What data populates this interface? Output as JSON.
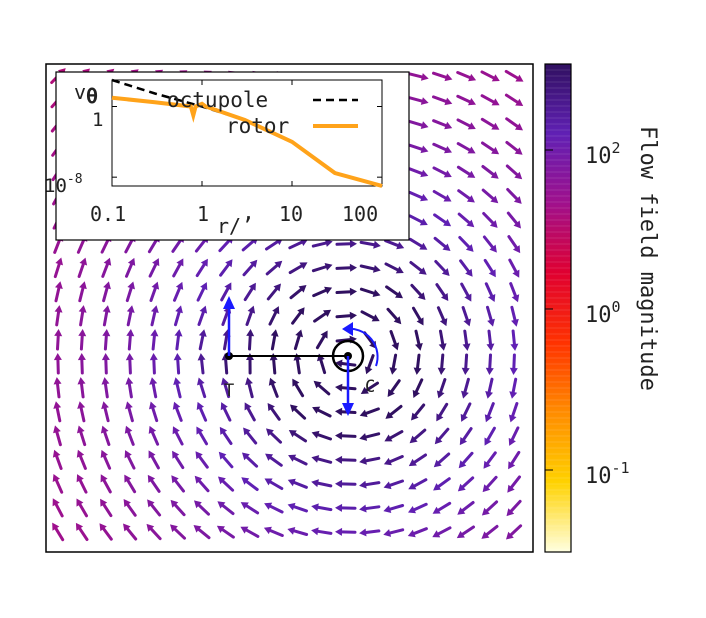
{
  "figure": {
    "field_labels": {
      "left_point": "T",
      "right_point": "C"
    },
    "colorbar": {
      "label": "Flow field magnitude",
      "gradient_stops": [
        "#ffffe0",
        "#ffd200",
        "#ff8c00",
        "#ff3200",
        "#e00030",
        "#a0108c",
        "#6020b4",
        "#301060"
      ],
      "ticks": [
        {
          "base": "10",
          "exp": "2"
        },
        {
          "base": "10",
          "exp": "0"
        },
        {
          "base": "10",
          "exp": "-1"
        }
      ]
    },
    "colors": {
      "frame": "#000000",
      "annotation_arrows": "#1a1aff",
      "rotor_curve": "#ffa31a",
      "octupole_curve": "#000000"
    }
  },
  "inset": {
    "ylabel": "v",
    "ylabel_sub": "θ",
    "xlabel": "r/",
    "xlabel_extra": "ʼ",
    "ytick_labels": [
      {
        "base": "1",
        "exp": ""
      },
      {
        "base": "10",
        "exp": "-8"
      }
    ],
    "xtick_labels": [
      "0.1",
      "1",
      "10",
      "100"
    ],
    "legend": [
      "octupole",
      "rotor"
    ]
  },
  "chart_data": {
    "type": "line",
    "xscale": "log",
    "yscale": "log",
    "xlim": [
      0.1,
      100
    ],
    "ylim": [
      1e-09,
      1000
    ],
    "xlabel": "r/",
    "ylabel": "vθ",
    "series": [
      {
        "name": "octupole",
        "style": "dashed",
        "x": [
          0.1,
          0.3,
          1,
          3,
          10,
          30,
          100
        ],
        "y": [
          1000,
          30,
          1,
          0.03,
          0.0001,
          3e-08,
          1e-09
        ]
      },
      {
        "name": "rotor",
        "style": "solid",
        "x": [
          0.1,
          0.3,
          0.75,
          0.8,
          0.85,
          1,
          1.1,
          3,
          10,
          30,
          100
        ],
        "y": [
          10,
          3,
          1,
          0.1,
          1,
          2,
          1,
          0.03,
          0.0001,
          3e-08,
          1e-09
        ]
      }
    ]
  }
}
